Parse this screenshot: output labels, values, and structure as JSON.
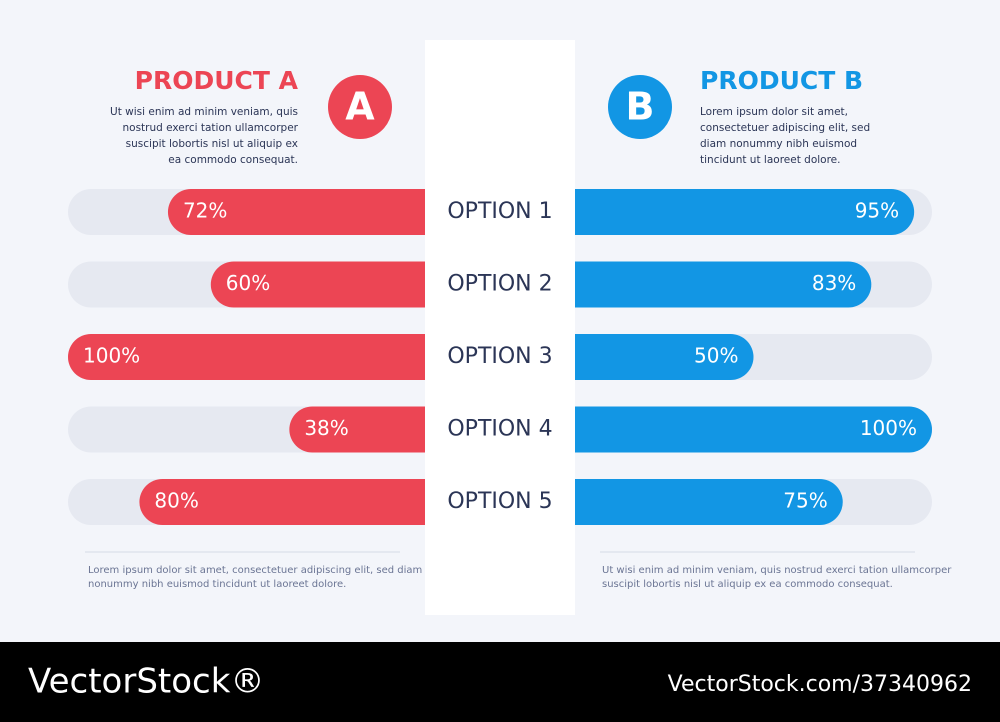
{
  "chart_data": {
    "type": "bar",
    "categories": [
      "OPTION 1",
      "OPTION 2",
      "OPTION 3",
      "OPTION 4",
      "OPTION 5"
    ],
    "xlim": [
      0,
      100
    ],
    "series": [
      {
        "name": "PRODUCT A",
        "color": "#ec4554",
        "values": [
          72,
          60,
          100,
          38,
          80
        ],
        "value_labels": [
          "72%",
          "60%",
          "100%",
          "38%",
          "80%"
        ]
      },
      {
        "name": "PRODUCT B",
        "color": "#1296e4",
        "values": [
          95,
          83,
          50,
          100,
          75
        ],
        "value_labels": [
          "95%",
          "83%",
          "50%",
          "100%",
          "75%"
        ]
      }
    ]
  },
  "products": [
    {
      "badge": "A",
      "description": [
        "Ut wisi enim ad minim veniam, quis",
        "nostrud exerci tation ullamcorper",
        "suscipit lobortis nisl ut aliquip ex",
        "ea commodo consequat."
      ],
      "note": [
        "Lorem ipsum dolor sit amet, consectetuer adipiscing elit, sed diam",
        "nonummy nibh euismod tincidunt ut laoreet dolore."
      ]
    },
    {
      "badge": "B",
      "description": [
        "Lorem ipsum dolor sit amet,",
        "consectetuer adipiscing elit, sed",
        "diam nonummy nibh euismod",
        "tincidunt ut laoreet dolore."
      ],
      "note": [
        "Ut wisi enim ad minim veniam, quis nostrud exerci tation ullamcorper",
        "suscipit lobortis nisl ut aliquip ex ea commodo consequat."
      ]
    }
  ],
  "watermark": {
    "brand": "VectorStock®",
    "id": "VectorStock.com/37340962"
  }
}
